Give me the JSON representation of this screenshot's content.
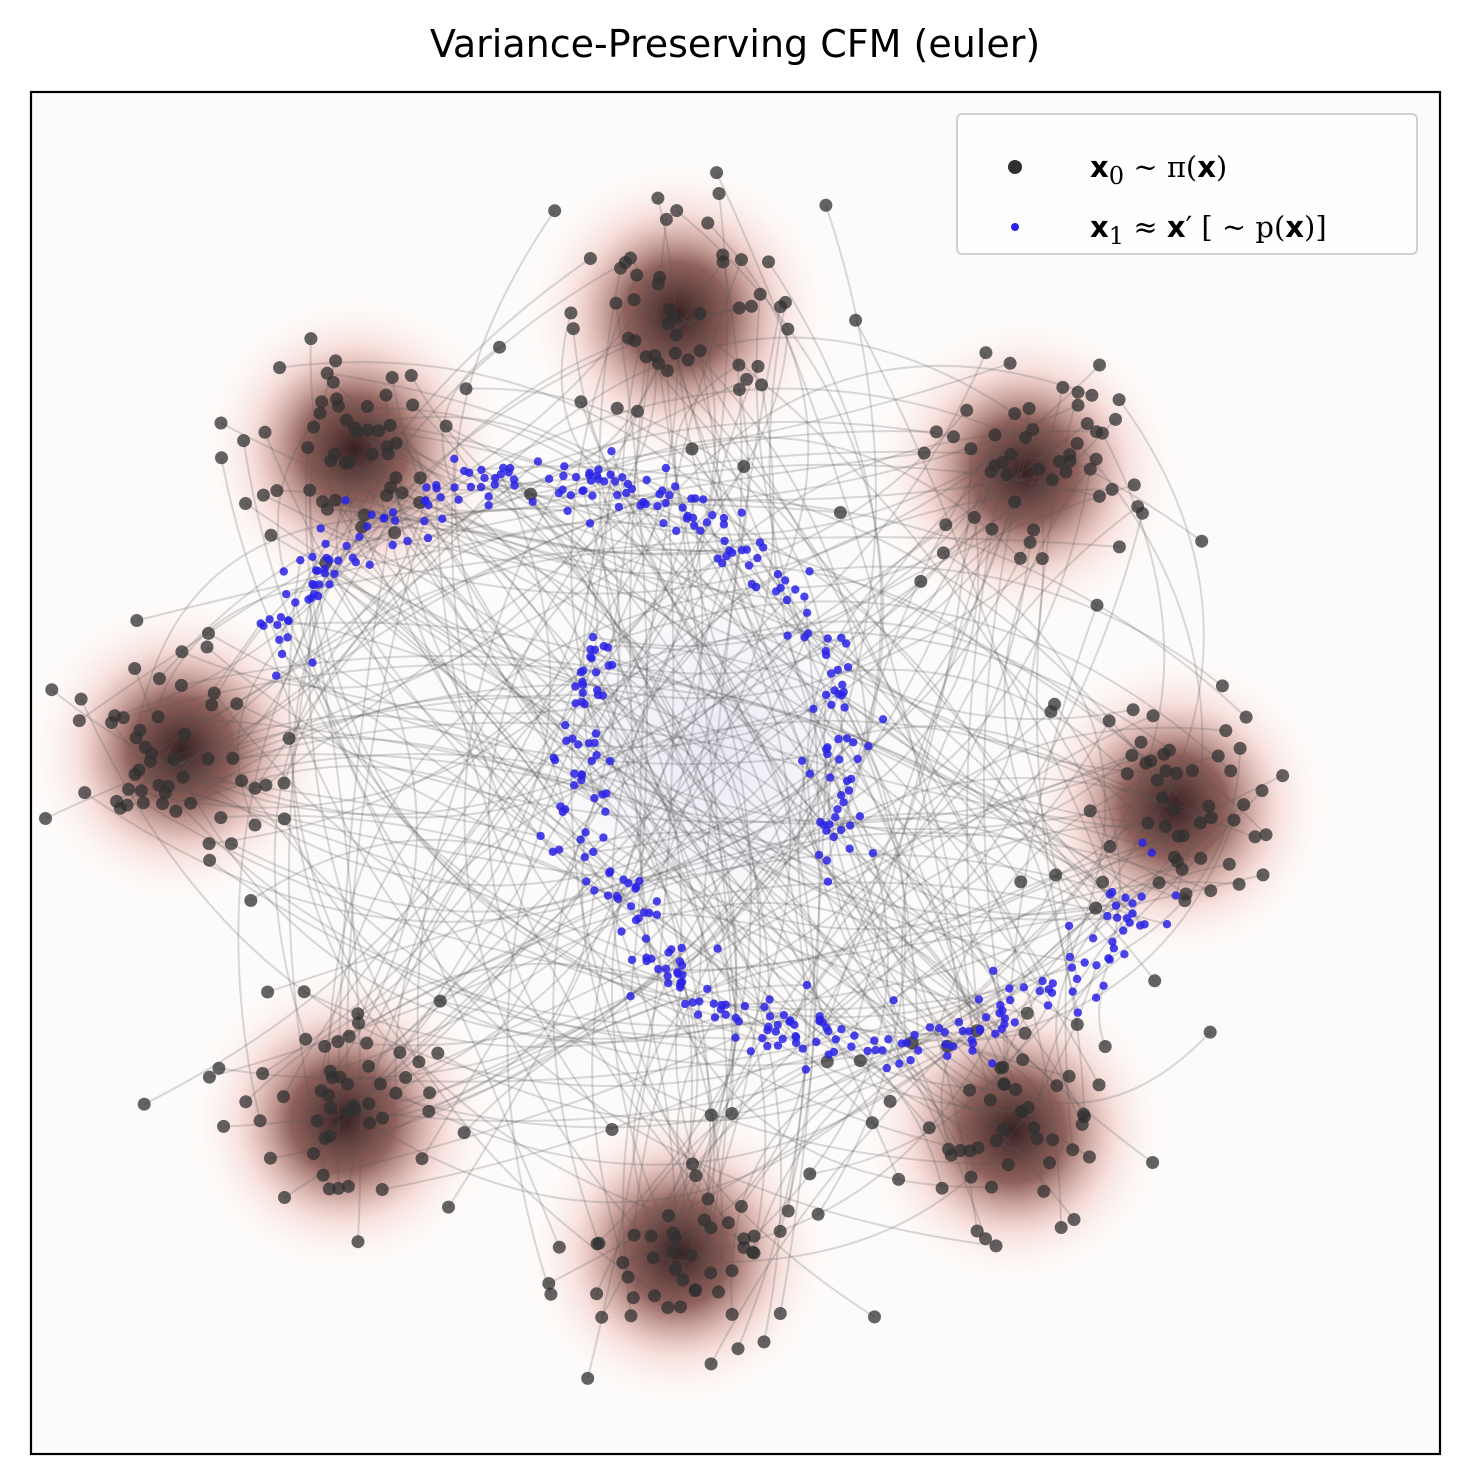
{
  "chart_data": {
    "type": "scatter",
    "title": "Variance-Preserving CFM (euler)",
    "xlabel": "",
    "ylabel": "",
    "axes_ticks": false,
    "grid": false,
    "legend_position": "top-right",
    "source_modes": {
      "count": 8,
      "arrangement": "ring",
      "centers": [
        [
          -2.8,
          3.0
        ],
        [
          0.0,
          4.2
        ],
        [
          3.0,
          2.8
        ],
        [
          4.3,
          -0.2
        ],
        [
          2.9,
          -3.1
        ],
        [
          0.0,
          -4.2
        ],
        [
          -2.9,
          -3.0
        ],
        [
          -4.3,
          0.3
        ]
      ]
    },
    "target_shape": "two-moons",
    "x_range": [
      -5.6,
      6.6
    ],
    "y_range": [
      -6.0,
      6.2
    ],
    "series": [
      {
        "name": "x0 ~ π(x)",
        "legend": {
          "math": "𝐱₀ ~ π(𝐱)",
          "parts": [
            "x",
            "0",
            "~ π(",
            "x",
            ")"
          ]
        },
        "color": "#303030",
        "marker": "circle",
        "alpha": 0.75,
        "points_per_mode": 55
      },
      {
        "name": "x1 ≈ x′ [ ~ p(x)]",
        "legend": {
          "parts": [
            "x",
            "1",
            "≈ ",
            "x",
            "′ [ ~ p(",
            "x",
            ")]"
          ]
        },
        "color": "#2a23e6",
        "marker": "circle",
        "points": 600
      }
    ],
    "background_density_color": "#e8958a",
    "trajectory_color": "#555555"
  }
}
